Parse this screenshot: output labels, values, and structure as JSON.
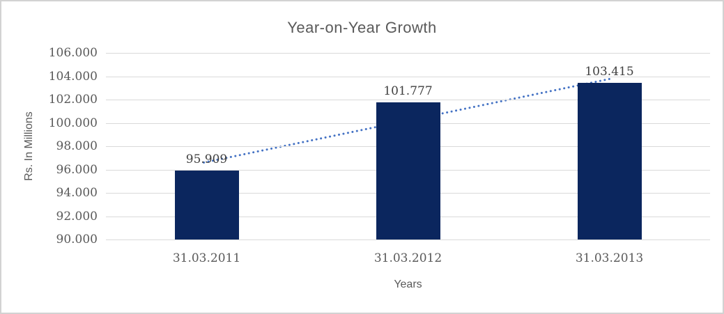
{
  "chart_data": {
    "type": "bar",
    "title": "Year-on-Year Growth",
    "xlabel": "Years",
    "ylabel": "Rs. In Millions",
    "categories": [
      "31.03.2011",
      "31.03.2012",
      "31.03.2013"
    ],
    "values": [
      95.909,
      101.777,
      103.415
    ],
    "data_labels": [
      "95.909",
      "101.777",
      "103.415"
    ],
    "y_ticks": [
      {
        "label": "90.000",
        "value": 90
      },
      {
        "label": "92.000",
        "value": 92
      },
      {
        "label": "94.000",
        "value": 94
      },
      {
        "label": "96.000",
        "value": 96
      },
      {
        "label": "98.000",
        "value": 98
      },
      {
        "label": "100.000",
        "value": 100
      },
      {
        "label": "102.000",
        "value": 102
      },
      {
        "label": "104.000",
        "value": 104
      },
      {
        "label": "106.000",
        "value": 106
      }
    ],
    "ylim": [
      90,
      106
    ],
    "grid": true,
    "legend": "none",
    "trendline": {
      "type": "linear",
      "style": "dotted",
      "start_value": 96.6,
      "end_value": 103.8
    },
    "colors": {
      "bar": "#0b265e",
      "trend": "#4472c4",
      "gridline": "#d9d9d9",
      "title_text": "#595959",
      "axis_text": "#595959",
      "data_label_text": "#404040",
      "frame_border": "#d2d2d2",
      "background": "#ffffff"
    }
  }
}
